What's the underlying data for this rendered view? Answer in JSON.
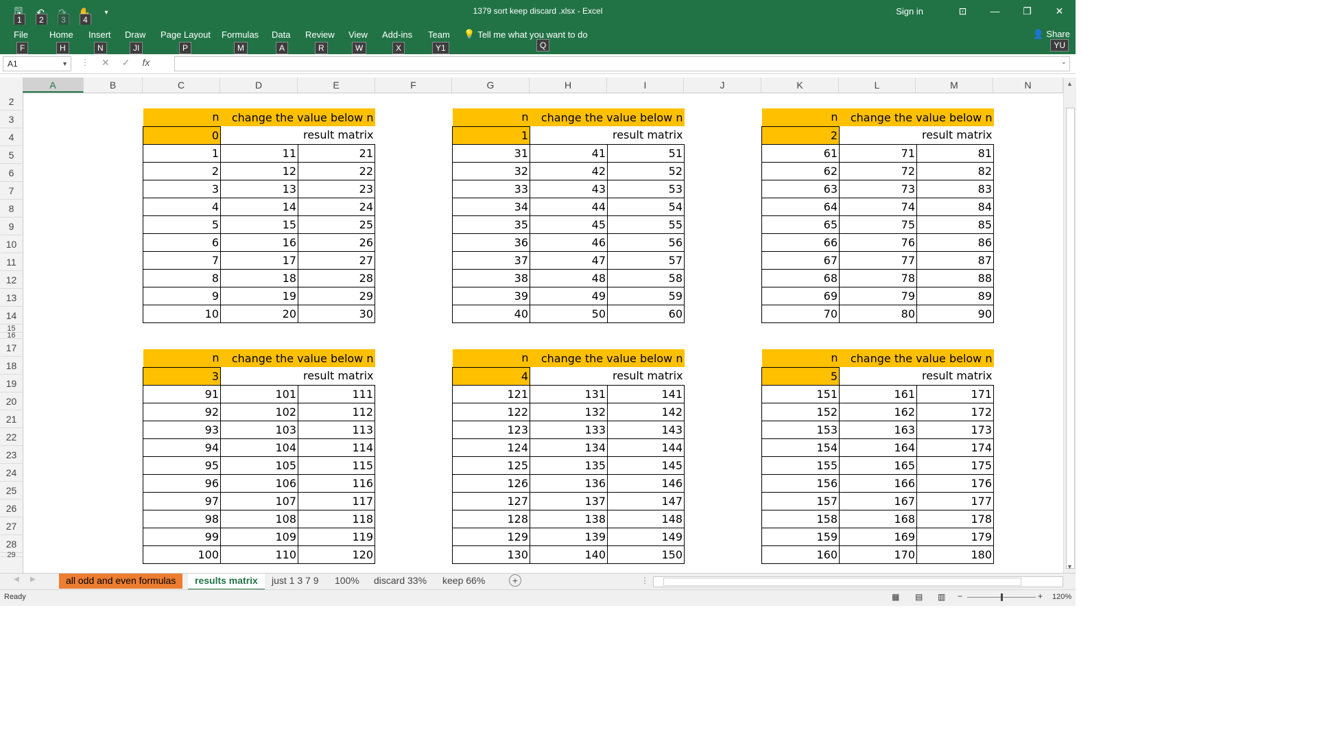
{
  "window": {
    "title": "1379 sort keep discard .xlsx  -  Excel",
    "signin": "Sign in",
    "qat_keytips": [
      "1",
      "2",
      "3",
      "4"
    ]
  },
  "ribbon": {
    "tabs": [
      {
        "label": "File",
        "key": "F"
      },
      {
        "label": "Home",
        "key": "H"
      },
      {
        "label": "Insert",
        "key": "N"
      },
      {
        "label": "Draw",
        "key": "JI"
      },
      {
        "label": "Page Layout",
        "key": "P"
      },
      {
        "label": "Formulas",
        "key": "M"
      },
      {
        "label": "Data",
        "key": "A"
      },
      {
        "label": "Review",
        "key": "R"
      },
      {
        "label": "View",
        "key": "W"
      },
      {
        "label": "Add-ins",
        "key": "X"
      },
      {
        "label": "Team",
        "key": "Y1"
      }
    ],
    "tell_me": "Tell me what you want to do",
    "tell_key": "Q",
    "share": "Share",
    "share_key": "YU"
  },
  "formula_bar": {
    "name_box": "A1",
    "fx": "fx",
    "formula": ""
  },
  "columns": [
    "A",
    "B",
    "C",
    "D",
    "E",
    "F",
    "G",
    "H",
    "I",
    "J",
    "K",
    "L",
    "M",
    "N"
  ],
  "rows": [
    "2",
    "3",
    "4",
    "5",
    "6",
    "7",
    "8",
    "9",
    "10",
    "11",
    "12",
    "13",
    "14",
    "15",
    "16",
    "17",
    "18",
    "19",
    "20",
    "21",
    "22",
    "23",
    "24",
    "25",
    "26",
    "27",
    "28",
    "29"
  ],
  "blocks": [
    {
      "n_label": "n",
      "change_label": "change the value below n",
      "n_value": "0",
      "result_label": "result matrix",
      "rows": [
        [
          "1",
          "11",
          "21"
        ],
        [
          "2",
          "12",
          "22"
        ],
        [
          "3",
          "13",
          "23"
        ],
        [
          "4",
          "14",
          "24"
        ],
        [
          "5",
          "15",
          "25"
        ],
        [
          "6",
          "16",
          "26"
        ],
        [
          "7",
          "17",
          "27"
        ],
        [
          "8",
          "18",
          "28"
        ],
        [
          "9",
          "19",
          "29"
        ],
        [
          "10",
          "20",
          "30"
        ]
      ]
    },
    {
      "n_label": "n",
      "change_label": "change the value below n",
      "n_value": "1",
      "result_label": "result matrix",
      "rows": [
        [
          "31",
          "41",
          "51"
        ],
        [
          "32",
          "42",
          "52"
        ],
        [
          "33",
          "43",
          "53"
        ],
        [
          "34",
          "44",
          "54"
        ],
        [
          "35",
          "45",
          "55"
        ],
        [
          "36",
          "46",
          "56"
        ],
        [
          "37",
          "47",
          "57"
        ],
        [
          "38",
          "48",
          "58"
        ],
        [
          "39",
          "49",
          "59"
        ],
        [
          "40",
          "50",
          "60"
        ]
      ]
    },
    {
      "n_label": "n",
      "change_label": "change the value below n",
      "n_value": "2",
      "result_label": "result matrix",
      "rows": [
        [
          "61",
          "71",
          "81"
        ],
        [
          "62",
          "72",
          "82"
        ],
        [
          "63",
          "73",
          "83"
        ],
        [
          "64",
          "74",
          "84"
        ],
        [
          "65",
          "75",
          "85"
        ],
        [
          "66",
          "76",
          "86"
        ],
        [
          "67",
          "77",
          "87"
        ],
        [
          "68",
          "78",
          "88"
        ],
        [
          "69",
          "79",
          "89"
        ],
        [
          "70",
          "80",
          "90"
        ]
      ]
    },
    {
      "n_label": "n",
      "change_label": "change the value below n",
      "n_value": "3",
      "result_label": "result matrix",
      "rows": [
        [
          "91",
          "101",
          "111"
        ],
        [
          "92",
          "102",
          "112"
        ],
        [
          "93",
          "103",
          "113"
        ],
        [
          "94",
          "104",
          "114"
        ],
        [
          "95",
          "105",
          "115"
        ],
        [
          "96",
          "106",
          "116"
        ],
        [
          "97",
          "107",
          "117"
        ],
        [
          "98",
          "108",
          "118"
        ],
        [
          "99",
          "109",
          "119"
        ],
        [
          "100",
          "110",
          "120"
        ]
      ]
    },
    {
      "n_label": "n",
      "change_label": "change the value below n",
      "n_value": "4",
      "result_label": "result matrix",
      "rows": [
        [
          "121",
          "131",
          "141"
        ],
        [
          "122",
          "132",
          "142"
        ],
        [
          "123",
          "133",
          "143"
        ],
        [
          "124",
          "134",
          "144"
        ],
        [
          "125",
          "135",
          "145"
        ],
        [
          "126",
          "136",
          "146"
        ],
        [
          "127",
          "137",
          "147"
        ],
        [
          "128",
          "138",
          "148"
        ],
        [
          "129",
          "139",
          "149"
        ],
        [
          "130",
          "140",
          "150"
        ]
      ]
    },
    {
      "n_label": "n",
      "change_label": "change the value below n",
      "n_value": "5",
      "result_label": "result matrix",
      "rows": [
        [
          "151",
          "161",
          "171"
        ],
        [
          "152",
          "162",
          "172"
        ],
        [
          "153",
          "163",
          "173"
        ],
        [
          "154",
          "164",
          "174"
        ],
        [
          "155",
          "165",
          "175"
        ],
        [
          "156",
          "166",
          "176"
        ],
        [
          "157",
          "167",
          "177"
        ],
        [
          "158",
          "168",
          "178"
        ],
        [
          "159",
          "169",
          "179"
        ],
        [
          "160",
          "170",
          "180"
        ]
      ]
    }
  ],
  "sheets": [
    {
      "label": "all odd and even formulas",
      "style": "orange"
    },
    {
      "label": "results matrix",
      "style": "active"
    },
    {
      "label": "just 1 3 7 9",
      "style": "normal"
    },
    {
      "label": "100%",
      "style": "normal"
    },
    {
      "label": "discard 33%",
      "style": "normal"
    },
    {
      "label": "keep 66%",
      "style": "normal"
    }
  ],
  "status": {
    "ready": "Ready",
    "zoom": "120%"
  }
}
